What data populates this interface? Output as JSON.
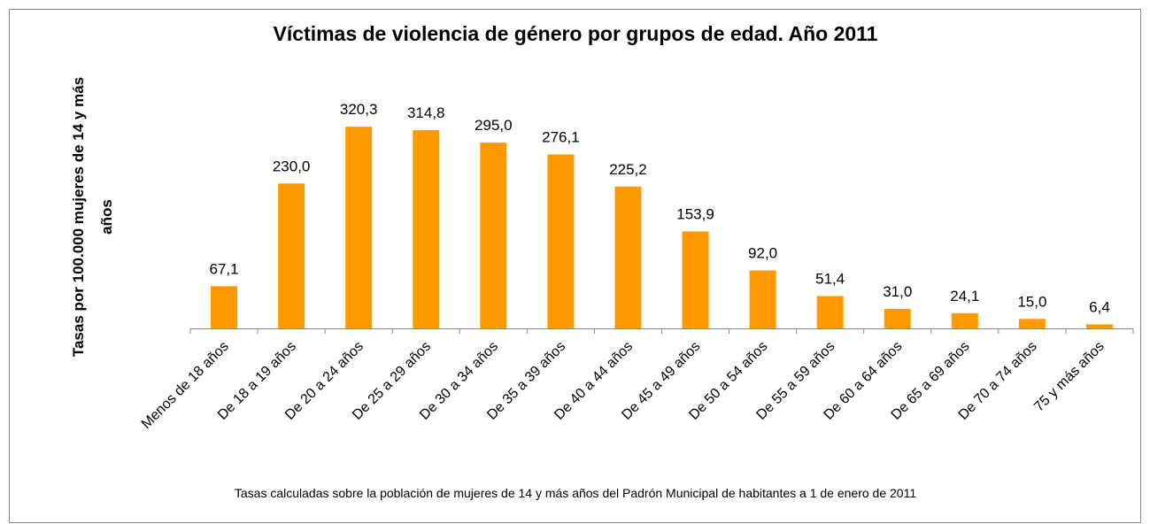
{
  "chart_data": {
    "type": "bar",
    "title": "Víctimas de violencia de género por grupos de edad. Año 2011",
    "y_label": "Tasas por 100.000 mujeres de 14 y más años",
    "note": "Tasas  calculadas sobre la población de mujeres de 14 y más años del Padrón Municipal de habitantes a 1 de enero de 2011",
    "categories": [
      "Menos de 18 años",
      "De 18 a 19 años",
      "De 20 a 24 años",
      "De 25 a 29 años",
      "De 30 a 34 años",
      "De 35 a 39 años",
      "De 40 a 44 años",
      "De 45 a 49 años",
      "De 50 a 54 años",
      "De 55 a 59 años",
      "De 60 a 64 años",
      "De 65 a 69 años",
      "De 70 a 74 años",
      "75 y más años"
    ],
    "values": [
      67.1,
      230.0,
      320.3,
      314.8,
      295.0,
      276.1,
      225.2,
      153.9,
      92.0,
      51.4,
      31.0,
      24.1,
      15.0,
      6.4
    ],
    "value_labels": [
      "67,1",
      "230,0",
      "320,3",
      "314,8",
      "295,0",
      "276,1",
      "225,2",
      "153,9",
      "92,0",
      "51,4",
      "31,0",
      "24,1",
      "15,0",
      "6,4"
    ],
    "color": "#ff9900",
    "ylim": [
      0,
      350
    ]
  }
}
